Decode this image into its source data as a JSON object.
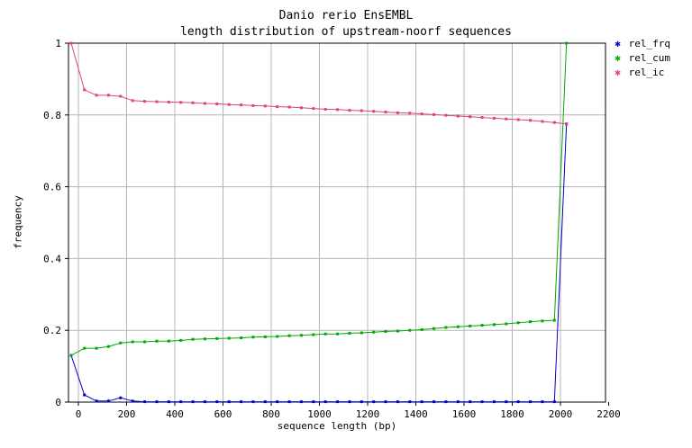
{
  "chart_data": {
    "type": "line",
    "title": "Danio rerio EnsEMBL",
    "subtitle": "length distribution of upstream-noorf sequences",
    "xlabel": "sequence length (bp)",
    "ylabel": "frequency",
    "xlim": [
      -50,
      2200
    ],
    "ylim": [
      0,
      1
    ],
    "xticks": [
      0,
      200,
      400,
      600,
      800,
      1000,
      1200,
      1400,
      1600,
      1800,
      2000,
      2200
    ],
    "yticks": [
      0,
      0.2,
      0.4,
      0.6,
      0.8,
      1
    ],
    "xtick_labels": [
      "0",
      "200",
      "400",
      "600",
      "800",
      "1000",
      "1200",
      "1400",
      "1600",
      "1800",
      "2000",
      "2200"
    ],
    "ytick_labels": [
      "0",
      "0.2",
      "0.4",
      "0.6",
      "0.8",
      "1"
    ],
    "grid": true,
    "legend_position": "top-right",
    "x": [
      -30,
      25,
      75,
      125,
      175,
      225,
      275,
      325,
      375,
      425,
      475,
      525,
      575,
      625,
      675,
      725,
      775,
      825,
      875,
      925,
      975,
      1025,
      1075,
      1125,
      1175,
      1225,
      1275,
      1325,
      1375,
      1425,
      1475,
      1525,
      1575,
      1625,
      1675,
      1725,
      1775,
      1825,
      1875,
      1925,
      1975,
      2025
    ],
    "series": [
      {
        "name": "rel_frq",
        "color": "#0000cc",
        "values": [
          0.13,
          0.02,
          0.003,
          0.003,
          0.012,
          0.003,
          0.001,
          0.001,
          0.001,
          0.001,
          0.001,
          0.001,
          0.001,
          0.001,
          0.001,
          0.001,
          0.001,
          0.001,
          0.001,
          0.001,
          0.001,
          0.001,
          0.001,
          0.001,
          0.001,
          0.001,
          0.001,
          0.001,
          0.001,
          0.001,
          0.001,
          0.001,
          0.001,
          0.001,
          0.001,
          0.001,
          0.001,
          0.001,
          0.001,
          0.001,
          0.001,
          0.775
        ]
      },
      {
        "name": "rel_cum",
        "color": "#00aa00",
        "values": [
          0.13,
          0.15,
          0.15,
          0.155,
          0.165,
          0.168,
          0.168,
          0.17,
          0.17,
          0.172,
          0.175,
          0.176,
          0.177,
          0.178,
          0.179,
          0.181,
          0.182,
          0.183,
          0.185,
          0.186,
          0.188,
          0.19,
          0.19,
          0.192,
          0.193,
          0.195,
          0.197,
          0.198,
          0.2,
          0.202,
          0.205,
          0.208,
          0.21,
          0.212,
          0.214,
          0.216,
          0.218,
          0.221,
          0.224,
          0.226,
          0.228,
          1.0
        ]
      },
      {
        "name": "rel_ic",
        "color": "#dd4477",
        "values": [
          1.0,
          0.87,
          0.855,
          0.855,
          0.852,
          0.84,
          0.838,
          0.837,
          0.836,
          0.835,
          0.834,
          0.832,
          0.831,
          0.829,
          0.828,
          0.826,
          0.825,
          0.823,
          0.822,
          0.82,
          0.818,
          0.816,
          0.815,
          0.813,
          0.812,
          0.81,
          0.808,
          0.806,
          0.805,
          0.803,
          0.801,
          0.799,
          0.797,
          0.795,
          0.793,
          0.791,
          0.789,
          0.787,
          0.785,
          0.782,
          0.779,
          0.775
        ]
      }
    ]
  }
}
